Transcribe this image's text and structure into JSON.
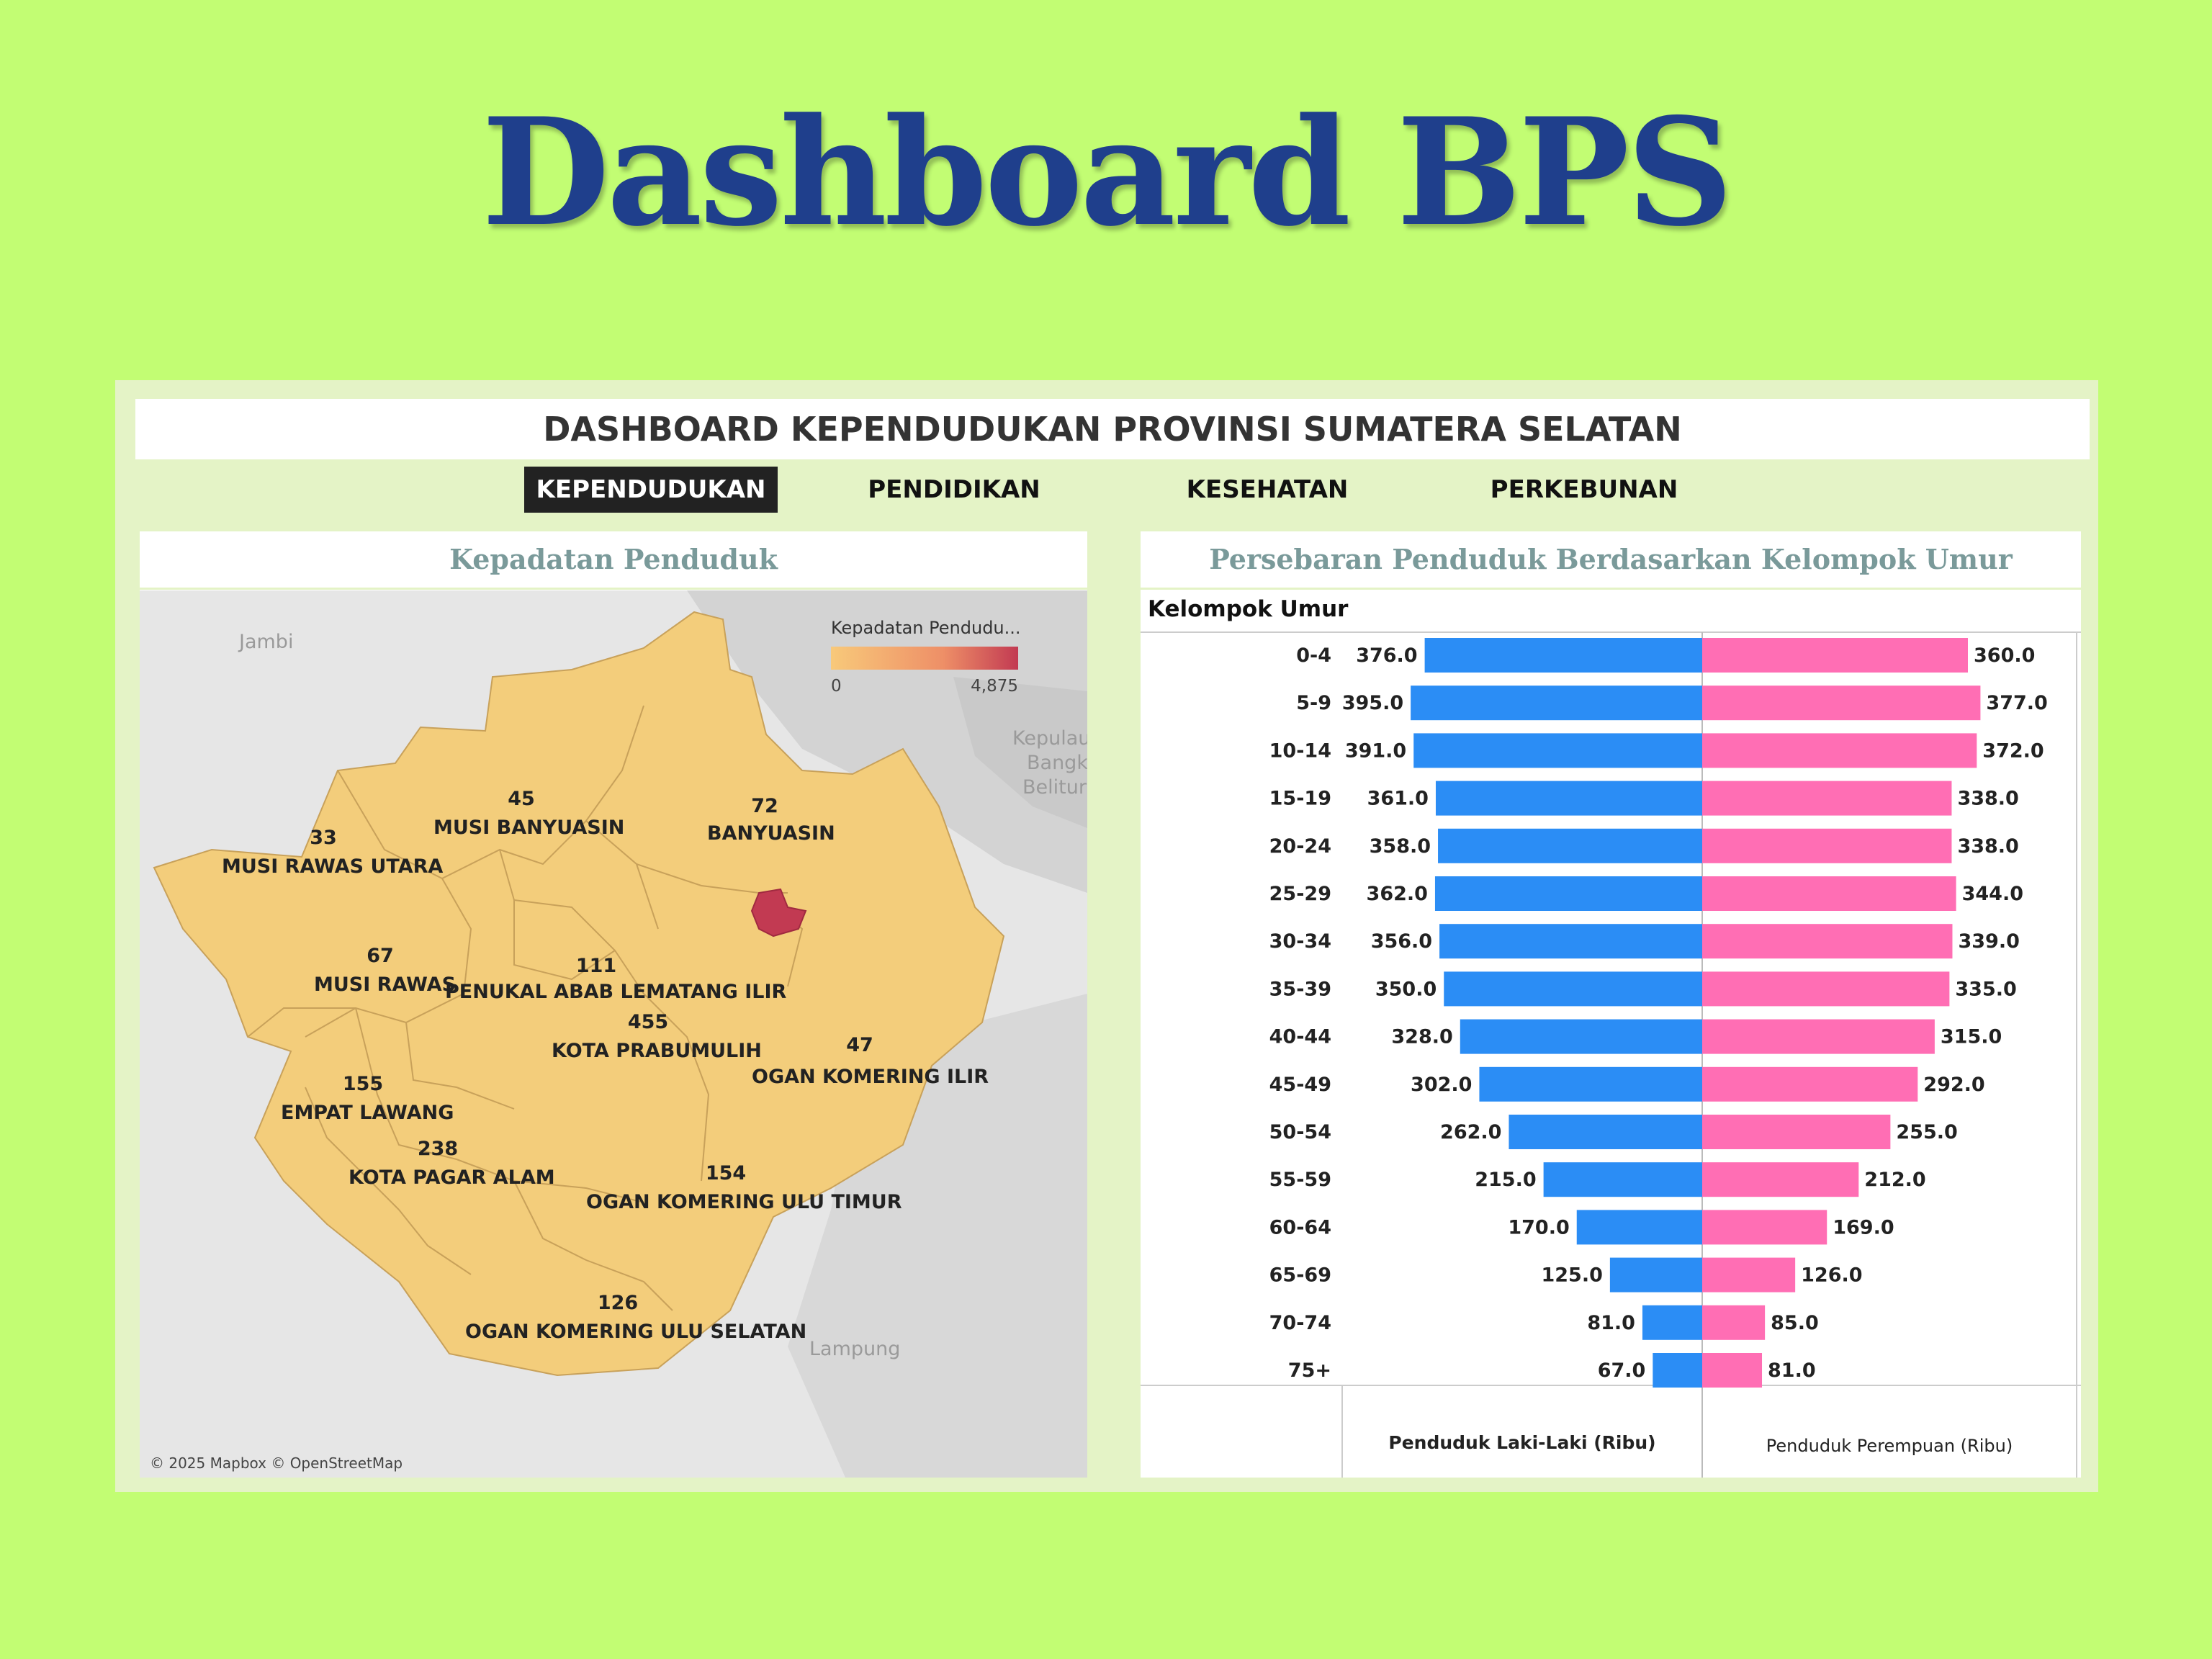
{
  "slide_title": "Dashboard BPS",
  "dashboard": {
    "title": "DASHBOARD KEPENDUDUKAN PROVINSI SUMATERA SELATAN",
    "tabs": [
      {
        "label": "KEPENDUDUKAN",
        "active": true
      },
      {
        "label": "PENDIDIKAN",
        "active": false
      },
      {
        "label": "KESEHATAN",
        "active": false
      },
      {
        "label": "PERKEBUNAN",
        "active": false
      }
    ]
  },
  "map_panel": {
    "title": "Kepadatan Penduduk",
    "legend": {
      "title": "Kepadatan Pendudu...",
      "min": "0",
      "max": "4,875",
      "color_low": "#f8c97a",
      "color_high": "#c23a52"
    },
    "context_labels": {
      "jambi": "Jambi",
      "lampung": "Lampung",
      "bangka": [
        "Kepulau",
        "Bangk",
        "Belitur"
      ]
    },
    "regions": [
      {
        "name": "MUSI RAWAS UTARA",
        "value": "33"
      },
      {
        "name": "MUSI BANYUASIN",
        "value": "45"
      },
      {
        "name": "BANYUASIN",
        "value": "72"
      },
      {
        "name": "MUSI RAWAS",
        "value": "67"
      },
      {
        "name": "PENUKAL ABAB LEMATANG ILIR",
        "value": "111"
      },
      {
        "name": "KOTA PRABUMULIH",
        "value": "455"
      },
      {
        "name": "OGAN KOMERING ILIR",
        "value": "47"
      },
      {
        "name": "EMPAT LAWANG",
        "value": "155"
      },
      {
        "name": "KOTA PAGAR ALAM",
        "value": "238"
      },
      {
        "name": "OGAN KOMERING ULU TIMUR",
        "value": "154"
      },
      {
        "name": "OGAN KOMERING ULU SELATAN",
        "value": "126"
      }
    ],
    "attribution": "© 2025 Mapbox  © OpenStreetMap"
  },
  "chart_panel": {
    "title": "Persebaran Penduduk Berdasarkan Kelompok Umur",
    "row_header": "Kelompok Umur"
  },
  "chart_data": {
    "type": "bar",
    "categories": [
      "0-4",
      "5-9",
      "10-14",
      "15-19",
      "20-24",
      "25-29",
      "30-34",
      "35-39",
      "40-44",
      "45-49",
      "50-54",
      "55-59",
      "60-64",
      "65-69",
      "70-74",
      "75+"
    ],
    "series": [
      {
        "name": "Penduduk Laki-Laki (Ribu)",
        "color": "#2b8df5",
        "values": [
          376.0,
          395.0,
          391.0,
          361.0,
          358.0,
          362.0,
          356.0,
          350.0,
          328.0,
          302.0,
          262.0,
          215.0,
          170.0,
          125.0,
          81.0,
          67.0
        ],
        "labels": [
          "376.0",
          "395.0",
          "391.0",
          "361.0",
          "358.0",
          "362.0",
          "356.0",
          "350.0",
          "328.0",
          "302.0",
          "262.0",
          "215.0",
          "170.0",
          "125.0",
          "81.0",
          "67.0"
        ]
      },
      {
        "name": "Penduduk Perempuan (Ribu)",
        "color": "#ff6eb4",
        "values": [
          360.0,
          377.0,
          372.0,
          338.0,
          338.0,
          344.0,
          339.0,
          335.0,
          315.0,
          292.0,
          255.0,
          212.0,
          169.0,
          126.0,
          85.0,
          81.0
        ],
        "labels": [
          "360.0",
          "377.0",
          "372.0",
          "338.0",
          "338.0",
          "344.0",
          "339.0",
          "335.0",
          "315.0",
          "292.0",
          "255.0",
          "212.0",
          "169.0",
          "126.0",
          "85.0",
          "81.0"
        ]
      }
    ],
    "xlim": [
      0,
      400
    ]
  }
}
